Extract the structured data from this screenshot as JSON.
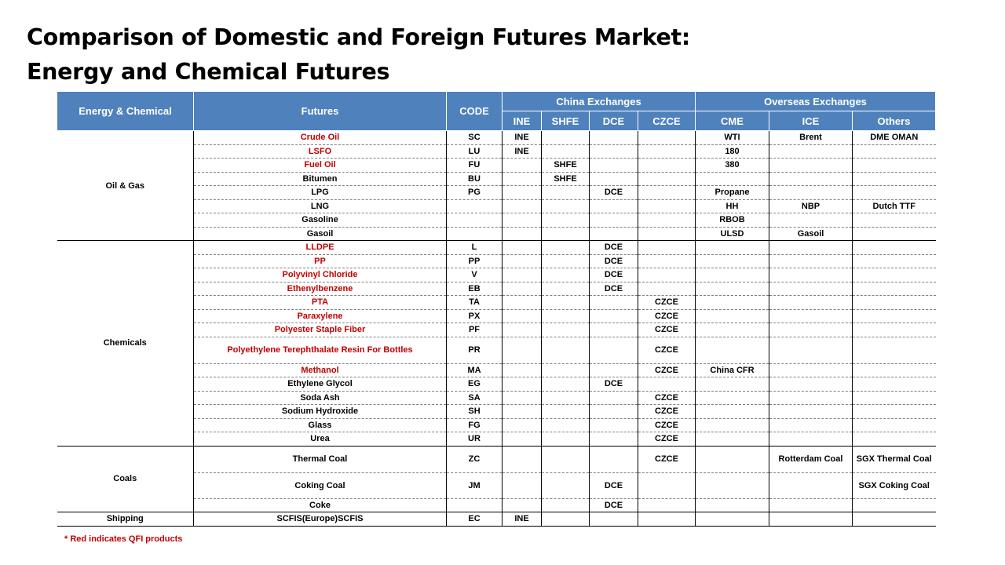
{
  "title": {
    "line1": "Comparison of Domestic and Foreign Futures Market:",
    "line2": "Energy and Chemical Futures"
  },
  "header": {
    "category": "Energy & Chemical",
    "futures": "Futures",
    "code": "CODE",
    "china_group": "China Exchanges",
    "overseas_group": "Overseas Exchanges",
    "ine": "INE",
    "shfe": "SHFE",
    "dce": "DCE",
    "czce": "CZCE",
    "cme": "CME",
    "ice": "ICE",
    "others": "Others"
  },
  "categories": {
    "oil_gas": "Oil & Gas",
    "chemicals": "Chemicals",
    "coals": "Coals",
    "shipping": "Shipping"
  },
  "rows": [
    {
      "name": "Crude Oil",
      "red": true,
      "code": "SC",
      "ine": "INE",
      "shfe": "",
      "dce": "",
      "czce": "",
      "cme": "WTI",
      "ice": "Brent",
      "others": "DME    OMAN"
    },
    {
      "name": "LSFO",
      "red": true,
      "code": "LU",
      "ine": "INE",
      "shfe": "",
      "dce": "",
      "czce": "",
      "cme": "180",
      "ice": "",
      "others": ""
    },
    {
      "name": "Fuel Oil",
      "red": true,
      "code": "FU",
      "ine": "",
      "shfe": "SHFE",
      "dce": "",
      "czce": "",
      "cme": "380",
      "ice": "",
      "others": ""
    },
    {
      "name": "Bitumen",
      "red": false,
      "code": "BU",
      "ine": "",
      "shfe": "SHFE",
      "dce": "",
      "czce": "",
      "cme": "",
      "ice": "",
      "others": ""
    },
    {
      "name": "LPG",
      "red": false,
      "code": "PG",
      "ine": "",
      "shfe": "",
      "dce": "DCE",
      "czce": "",
      "cme": "Propane",
      "ice": "",
      "others": ""
    },
    {
      "name": "LNG",
      "red": false,
      "code": "",
      "ine": "",
      "shfe": "",
      "dce": "",
      "czce": "",
      "cme": "HH",
      "ice": "NBP",
      "others": "Dutch TTF"
    },
    {
      "name": "Gasoline",
      "red": false,
      "code": "",
      "ine": "",
      "shfe": "",
      "dce": "",
      "czce": "",
      "cme": "RBOB",
      "ice": "",
      "others": ""
    },
    {
      "name": "Gasoil",
      "red": false,
      "code": "",
      "ine": "",
      "shfe": "",
      "dce": "",
      "czce": "",
      "cme": "ULSD",
      "ice": "Gasoil",
      "others": ""
    },
    {
      "name": "LLDPE",
      "red": true,
      "code": "L",
      "ine": "",
      "shfe": "",
      "dce": "DCE",
      "czce": "",
      "cme": "",
      "ice": "",
      "others": ""
    },
    {
      "name": "PP",
      "red": true,
      "code": "PP",
      "ine": "",
      "shfe": "",
      "dce": "DCE",
      "czce": "",
      "cme": "",
      "ice": "",
      "others": ""
    },
    {
      "name": "Polyvinyl Chloride",
      "red": true,
      "code": "V",
      "ine": "",
      "shfe": "",
      "dce": "DCE",
      "czce": "",
      "cme": "",
      "ice": "",
      "others": ""
    },
    {
      "name": "Ethenylbenzene",
      "red": true,
      "code": "EB",
      "ine": "",
      "shfe": "",
      "dce": "DCE",
      "czce": "",
      "cme": "",
      "ice": "",
      "others": ""
    },
    {
      "name": "PTA",
      "red": true,
      "code": "TA",
      "ine": "",
      "shfe": "",
      "dce": "",
      "czce": "CZCE",
      "cme": "",
      "ice": "",
      "others": ""
    },
    {
      "name": "Paraxylene",
      "red": true,
      "code": "PX",
      "ine": "",
      "shfe": "",
      "dce": "",
      "czce": "CZCE",
      "cme": "",
      "ice": "",
      "others": ""
    },
    {
      "name": "Polyester Staple Fiber",
      "red": true,
      "code": "PF",
      "ine": "",
      "shfe": "",
      "dce": "",
      "czce": "CZCE",
      "cme": "",
      "ice": "",
      "others": ""
    },
    {
      "name": "Polyethylene Terephthalate Resin For Bottles",
      "red": true,
      "code": "PR",
      "ine": "",
      "shfe": "",
      "dce": "",
      "czce": "CZCE",
      "cme": "",
      "ice": "",
      "others": ""
    },
    {
      "name": "Methanol",
      "red": true,
      "code": "MA",
      "ine": "",
      "shfe": "",
      "dce": "",
      "czce": "CZCE",
      "cme": "China CFR",
      "ice": "",
      "others": ""
    },
    {
      "name": "Ethylene Glycol",
      "red": false,
      "code": "EG",
      "ine": "",
      "shfe": "",
      "dce": "DCE",
      "czce": "",
      "cme": "",
      "ice": "",
      "others": ""
    },
    {
      "name": "Soda Ash",
      "red": false,
      "code": "SA",
      "ine": "",
      "shfe": "",
      "dce": "",
      "czce": "CZCE",
      "cme": "",
      "ice": "",
      "others": ""
    },
    {
      "name": "Sodium Hydroxide",
      "red": false,
      "code": "SH",
      "ine": "",
      "shfe": "",
      "dce": "",
      "czce": "CZCE",
      "cme": "",
      "ice": "",
      "others": ""
    },
    {
      "name": "Glass",
      "red": false,
      "code": "FG",
      "ine": "",
      "shfe": "",
      "dce": "",
      "czce": "CZCE",
      "cme": "",
      "ice": "",
      "others": ""
    },
    {
      "name": "Urea",
      "red": false,
      "code": "UR",
      "ine": "",
      "shfe": "",
      "dce": "",
      "czce": "CZCE",
      "cme": "",
      "ice": "",
      "others": ""
    },
    {
      "name": "Thermal Coal",
      "red": false,
      "code": "ZC",
      "ine": "",
      "shfe": "",
      "dce": "",
      "czce": "CZCE",
      "cme": "",
      "ice": "Rotterdam Coal",
      "others": "SGX Thermal Coal"
    },
    {
      "name": "Coking Coal",
      "red": false,
      "code": "JM",
      "ine": "",
      "shfe": "",
      "dce": "DCE",
      "czce": "",
      "cme": "",
      "ice": "",
      "others": "SGX Coking Coal"
    },
    {
      "name": "Coke",
      "red": false,
      "code": "",
      "ine": "",
      "shfe": "",
      "dce": "DCE",
      "czce": "",
      "cme": "",
      "ice": "",
      "others": ""
    },
    {
      "name": "SCFIS(Europe)SCFIS",
      "red": false,
      "code": "EC",
      "ine": "INE",
      "shfe": "",
      "dce": "",
      "czce": "",
      "cme": "",
      "ice": "",
      "others": ""
    }
  ],
  "note": "*  Red indicates QFI products",
  "colors": {
    "header_bg": "#4f81bd",
    "header_text": "#ffffff",
    "qfi_red": "#c00000"
  }
}
